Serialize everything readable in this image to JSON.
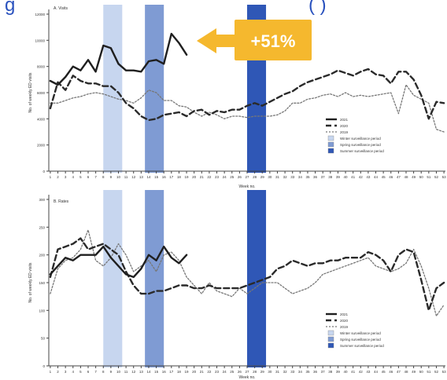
{
  "header_fragment": "g",
  "header_fragment_right": "( )",
  "callout": {
    "text": "+51%",
    "color": "#f5b82e",
    "text_color": "#ffffff"
  },
  "colors": {
    "winter_band": "#c7d6ef",
    "spring_band": "#7f9bd3",
    "summer_band": "#2f57b6",
    "header_blue": "#2a52be",
    "axis": "#444444"
  },
  "chart_data": [
    {
      "type": "line",
      "title": "A. Visits",
      "xlabel": "Week no.",
      "ylabel": "No. of weekly ED visits",
      "x": [
        1,
        2,
        3,
        4,
        5,
        6,
        7,
        8,
        9,
        10,
        11,
        12,
        13,
        14,
        15,
        16,
        17,
        18,
        19,
        20,
        21,
        22,
        23,
        24,
        25,
        26,
        27,
        28,
        29,
        30,
        31,
        32,
        33,
        34,
        35,
        36,
        37,
        38,
        39,
        40,
        41,
        42,
        43,
        44,
        45,
        46,
        47,
        48,
        49,
        50,
        51,
        52,
        53
      ],
      "xticks": [
        "1",
        "2",
        "3",
        "4",
        "5",
        "6",
        "7",
        "8",
        "9",
        "10",
        "11",
        "12",
        "13",
        "14",
        "15",
        "16",
        "17",
        "18",
        "19",
        "20",
        "21",
        "22",
        "23",
        "24",
        "25",
        "26",
        "27",
        "28",
        "29",
        "30",
        "31",
        "32",
        "33",
        "34",
        "35",
        "36",
        "37",
        "38",
        "39",
        "40",
        "41",
        "42",
        "43",
        "44",
        "45",
        "46",
        "47",
        "48",
        "49",
        "50",
        "51",
        "52",
        "53"
      ],
      "xlim": [
        0.8,
        53.2
      ],
      "ylim": [
        0,
        12000
      ],
      "yticks": [
        "0",
        "2000",
        "4000",
        "6000",
        "8000",
        "10000",
        "12000"
      ],
      "ytick_values": [
        0,
        2000,
        4000,
        6000,
        8000,
        10000,
        12000
      ],
      "grid": false,
      "shaded_periods": [
        {
          "name": "Winter surveillance period",
          "x_start": 8,
          "x_end": 10.5
        },
        {
          "name": "Spring surveillance period",
          "x_start": 13.5,
          "x_end": 16
        },
        {
          "name": "Summer surveillance period",
          "x_start": 27,
          "x_end": 29.5
        }
      ],
      "legend_position": "right",
      "series": [
        {
          "name": "2021",
          "style": "solid",
          "values": [
            6900,
            6600,
            7200,
            8000,
            7700,
            8500,
            7600,
            9600,
            9400,
            8200,
            7700,
            7700,
            7600,
            8400,
            8500,
            8200,
            10500,
            9800,
            8900,
            null,
            null,
            null,
            null,
            null,
            null,
            null,
            null,
            null,
            null,
            null,
            null,
            null,
            null,
            null,
            null,
            null,
            null,
            null,
            null,
            null,
            null,
            null,
            null,
            null,
            null,
            null,
            null,
            null,
            null,
            null,
            null,
            null,
            null
          ]
        },
        {
          "name": "2020",
          "style": "dashed",
          "values": [
            4800,
            6800,
            6200,
            7300,
            6900,
            6700,
            6700,
            6500,
            6500,
            6000,
            5200,
            4800,
            4200,
            3900,
            4000,
            4300,
            4400,
            4500,
            4200,
            4600,
            4700,
            4300,
            4600,
            4500,
            4700,
            4700,
            5000,
            5200,
            5000,
            5300,
            5600,
            5900,
            6100,
            6500,
            6800,
            7000,
            7200,
            7400,
            7700,
            7500,
            7300,
            7600,
            7800,
            7400,
            7300,
            6700,
            7600,
            7600,
            7000,
            5800,
            4000,
            5300,
            5200
          ]
        },
        {
          "name": "2019",
          "style": "dotted",
          "values": [
            5200,
            5200,
            5400,
            5600,
            5700,
            5900,
            6000,
            5900,
            5700,
            5500,
            5400,
            5200,
            5600,
            6200,
            6000,
            5400,
            5400,
            5000,
            4900,
            4500,
            4200,
            4500,
            4300,
            4000,
            4200,
            4200,
            4100,
            4200,
            4200,
            4200,
            4300,
            4600,
            5200,
            5200,
            5500,
            5600,
            5800,
            5900,
            5700,
            6000,
            5700,
            5800,
            5700,
            5800,
            5900,
            6000,
            4400,
            6600,
            5800,
            5500,
            5200,
            3200,
            3000
          ]
        }
      ]
    },
    {
      "type": "line",
      "title": "B. Rates",
      "xlabel": "Week no.",
      "ylabel": "No. of weekly ED visits",
      "x": [
        1,
        2,
        3,
        4,
        5,
        6,
        7,
        8,
        9,
        10,
        11,
        12,
        13,
        14,
        15,
        16,
        17,
        18,
        19,
        20,
        21,
        22,
        23,
        24,
        25,
        26,
        27,
        28,
        29,
        30,
        31,
        32,
        33,
        34,
        35,
        36,
        37,
        38,
        39,
        40,
        41,
        42,
        43,
        44,
        45,
        46,
        47,
        48,
        49,
        50,
        51,
        52,
        53
      ],
      "xticks": [
        "1",
        "2",
        "3",
        "4",
        "5",
        "6",
        "7",
        "8",
        "9",
        "10",
        "11",
        "12",
        "13",
        "14",
        "15",
        "16",
        "17",
        "18",
        "19",
        "20",
        "21",
        "22",
        "23",
        "24",
        "25",
        "26",
        "27",
        "28",
        "29",
        "30",
        "31",
        "32",
        "33",
        "34",
        "35",
        "36",
        "37",
        "38",
        "39",
        "40",
        "41",
        "42",
        "43",
        "44",
        "45",
        "46",
        "47",
        "48",
        "49",
        "50",
        "51",
        "52",
        "53"
      ],
      "xlim": [
        0.8,
        53.2
      ],
      "ylim": [
        0,
        300
      ],
      "yticks": [
        "0",
        "50",
        "100",
        "150",
        "200",
        "250",
        "300"
      ],
      "ytick_values": [
        0,
        50,
        100,
        150,
        200,
        250,
        300
      ],
      "grid": false,
      "shaded_periods": [
        {
          "name": "Winter surveillance period",
          "x_start": 8,
          "x_end": 10.5
        },
        {
          "name": "Spring surveillance period",
          "x_start": 13.5,
          "x_end": 16
        },
        {
          "name": "Summer surveillance period",
          "x_start": 27,
          "x_end": 29.5
        }
      ],
      "legend_position": "right",
      "series": [
        {
          "name": "2021",
          "style": "solid",
          "values": [
            165,
            180,
            195,
            190,
            200,
            200,
            200,
            215,
            195,
            180,
            165,
            160,
            175,
            200,
            190,
            215,
            195,
            185,
            200,
            null,
            null,
            null,
            null,
            null,
            null,
            null,
            null,
            null,
            null,
            null,
            null,
            null,
            null,
            null,
            null,
            null,
            null,
            null,
            null,
            null,
            null,
            null,
            null,
            null,
            null,
            null,
            null,
            null,
            null,
            null,
            null,
            null,
            null
          ]
        },
        {
          "name": "2020",
          "style": "dashed",
          "values": [
            160,
            210,
            215,
            220,
            230,
            210,
            215,
            220,
            210,
            200,
            170,
            145,
            130,
            130,
            135,
            135,
            140,
            145,
            145,
            140,
            140,
            145,
            140,
            140,
            140,
            140,
            145,
            150,
            155,
            160,
            175,
            180,
            190,
            185,
            180,
            185,
            185,
            190,
            190,
            195,
            195,
            195,
            205,
            200,
            190,
            170,
            200,
            210,
            205,
            155,
            100,
            140,
            150
          ]
        },
        {
          "name": "2019",
          "style": "dotted",
          "values": [
            130,
            175,
            190,
            195,
            210,
            245,
            190,
            180,
            195,
            220,
            200,
            170,
            180,
            190,
            170,
            200,
            205,
            190,
            160,
            145,
            130,
            150,
            135,
            130,
            125,
            140,
            130,
            140,
            150,
            150,
            150,
            140,
            130,
            135,
            140,
            150,
            165,
            170,
            175,
            180,
            185,
            190,
            195,
            180,
            175,
            170,
            175,
            185,
            210,
            180,
            140,
            90,
            110
          ]
        }
      ]
    }
  ]
}
